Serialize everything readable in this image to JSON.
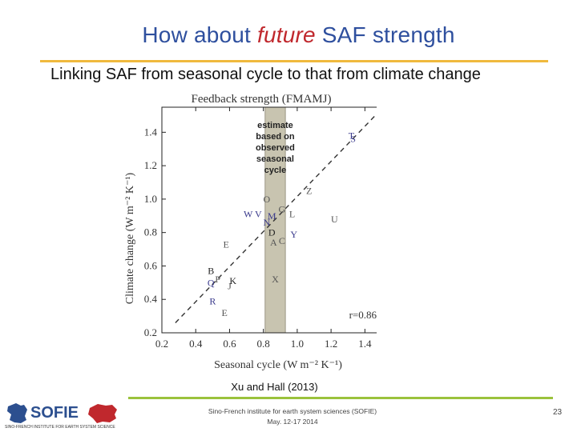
{
  "title": {
    "pre": "How about ",
    "highlight": "future",
    "post": " SAF strength"
  },
  "subtitle": "Linking SAF from seasonal cycle to that from climate change",
  "chart_data": {
    "type": "scatter",
    "title": "Feedback strength (FMAMJ)",
    "xlabel": "Seasonal cycle (W m⁻² K⁻¹)",
    "ylabel": "Climate change (W m⁻² K⁻¹)",
    "xlim": [
      0.2,
      1.55
    ],
    "ylim": [
      0.2,
      1.55
    ],
    "xticks": [
      "0.2",
      "0.4",
      "0.6",
      "0.8",
      "1.0",
      "1.2",
      "1.4"
    ],
    "yticks": [
      "0.2",
      "0.4",
      "0.6",
      "0.8",
      "1.0",
      "1.2",
      "1.4"
    ],
    "grid": false,
    "points": [
      {
        "label": "T",
        "x": 1.32,
        "y": 1.38,
        "color": "#3a3a8c"
      },
      {
        "label": "S",
        "x": 1.33,
        "y": 1.36,
        "color": "#3a3a8c"
      },
      {
        "label": "Z",
        "x": 1.07,
        "y": 1.05,
        "color": "#555555"
      },
      {
        "label": "O",
        "x": 0.82,
        "y": 1.0,
        "color": "#555555"
      },
      {
        "label": "W",
        "x": 0.71,
        "y": 0.91,
        "color": "#3a3a8c"
      },
      {
        "label": "V",
        "x": 0.77,
        "y": 0.91,
        "color": "#3a3a8c"
      },
      {
        "label": "M",
        "x": 0.85,
        "y": 0.9,
        "color": "#3a3a8c"
      },
      {
        "label": "G",
        "x": 0.91,
        "y": 0.94,
        "color": "#555555"
      },
      {
        "label": "L",
        "x": 0.97,
        "y": 0.91,
        "color": "#555555"
      },
      {
        "label": "U",
        "x": 1.22,
        "y": 0.88,
        "color": "#555555"
      },
      {
        "label": "N",
        "x": 0.82,
        "y": 0.86,
        "color": "#3a3a8c"
      },
      {
        "label": "D",
        "x": 0.85,
        "y": 0.8,
        "color": "#222222"
      },
      {
        "label": "Y",
        "x": 0.98,
        "y": 0.79,
        "color": "#3a3a8c"
      },
      {
        "label": "E",
        "x": 0.58,
        "y": 0.73,
        "color": "#555555"
      },
      {
        "label": "A",
        "x": 0.86,
        "y": 0.74,
        "color": "#555555"
      },
      {
        "label": "C",
        "x": 0.91,
        "y": 0.75,
        "color": "#555555"
      },
      {
        "label": "B",
        "x": 0.49,
        "y": 0.57,
        "color": "#222222"
      },
      {
        "label": "P",
        "x": 0.53,
        "y": 0.52,
        "color": "#555555"
      },
      {
        "label": "Q",
        "x": 0.49,
        "y": 0.5,
        "color": "#3a3a8c"
      },
      {
        "label": "K",
        "x": 0.62,
        "y": 0.51,
        "color": "#222222"
      },
      {
        "label": "J",
        "x": 0.6,
        "y": 0.48,
        "color": "#555555"
      },
      {
        "label": "X",
        "x": 0.87,
        "y": 0.52,
        "color": "#555555"
      },
      {
        "label": "R",
        "x": 0.5,
        "y": 0.39,
        "color": "#3a3a8c"
      },
      {
        "label": "E",
        "x": 0.57,
        "y": 0.32,
        "color": "#555555"
      }
    ],
    "regression_line": {
      "x": [
        0.28,
        1.48
      ],
      "y": [
        0.26,
        1.52
      ]
    },
    "estimate_band": {
      "x": [
        0.81,
        0.93
      ]
    },
    "estimate_label": [
      "estimate",
      "based on",
      "observed",
      "seasonal",
      "cycle"
    ],
    "annotation": "r=0.86"
  },
  "citation": "Xu and Hall (2013)",
  "footer": {
    "line1": "Sino-French institute for earth system sciences (SOFIE)",
    "line2": "May. 12-17 2014"
  },
  "slide_number": "23",
  "logo": {
    "text": "SOFIE",
    "tagline": "SINO-FRENCH INSTITUTE FOR EARTH SYSTEM SCIENCE"
  }
}
